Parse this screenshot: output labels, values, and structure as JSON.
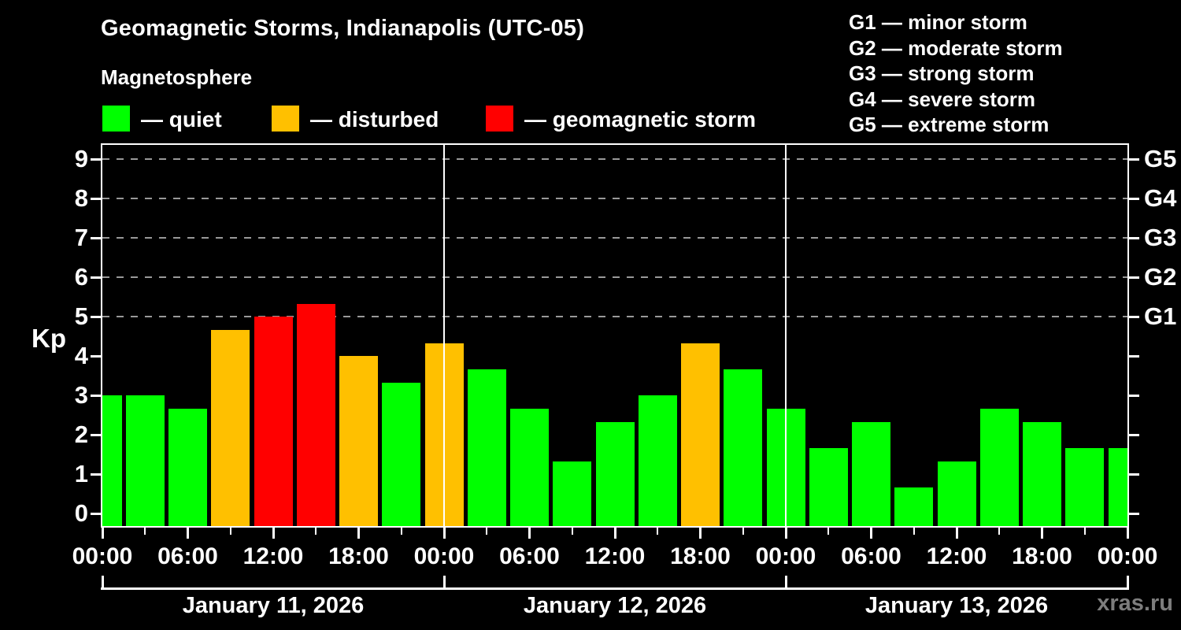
{
  "header": {
    "title": "Geomagnetic Storms, Indianapolis (UTC-05)",
    "subtitle": "Magnetosphere"
  },
  "legend": {
    "items": [
      {
        "state": "quiet",
        "label": "— quiet"
      },
      {
        "state": "disturbed",
        "label": "— disturbed"
      },
      {
        "state": "storm",
        "label": "— geomagnetic storm"
      }
    ]
  },
  "g_legend": {
    "items": [
      "G1 — minor storm",
      "G2 — moderate storm",
      "G3 — strong storm",
      "G4 — severe storm",
      "G5 — extreme storm"
    ]
  },
  "watermark": "xras.ru",
  "chart_data": {
    "type": "bar",
    "title": "Geomagnetic Storms, Indianapolis (UTC-05)",
    "subtitle": "Magnetosphere",
    "ylabel": "Kp",
    "ylim": [
      0,
      9
    ],
    "y_ticks": [
      "0",
      "1",
      "2",
      "3",
      "4",
      "5",
      "6",
      "7",
      "8",
      "9"
    ],
    "grid_kp_levels": [
      5,
      6,
      7,
      8,
      9
    ],
    "right_axis_ticks": [
      {
        "kp": 5,
        "label": "G1"
      },
      {
        "kp": 6,
        "label": "G2"
      },
      {
        "kp": 7,
        "label": "G3"
      },
      {
        "kp": 8,
        "label": "G4"
      },
      {
        "kp": 9,
        "label": "G5"
      }
    ],
    "x_hours_total": 72,
    "bar_interval_hours": 3,
    "x_major_ticks": [
      {
        "hour": 0,
        "label": "00:00"
      },
      {
        "hour": 6,
        "label": "06:00"
      },
      {
        "hour": 12,
        "label": "12:00"
      },
      {
        "hour": 18,
        "label": "18:00"
      },
      {
        "hour": 24,
        "label": "00:00"
      },
      {
        "hour": 30,
        "label": "06:00"
      },
      {
        "hour": 36,
        "label": "12:00"
      },
      {
        "hour": 42,
        "label": "18:00"
      },
      {
        "hour": 48,
        "label": "00:00"
      },
      {
        "hour": 54,
        "label": "06:00"
      },
      {
        "hour": 60,
        "label": "12:00"
      },
      {
        "hour": 66,
        "label": "18:00"
      },
      {
        "hour": 72,
        "label": "00:00"
      }
    ],
    "x_minor_tick_hours": [
      3,
      9,
      15,
      21,
      27,
      33,
      39,
      45,
      51,
      57,
      63,
      69
    ],
    "day_boundaries_hours": [
      24,
      48
    ],
    "days": [
      {
        "label": "January 11, 2026",
        "start_hour": 0,
        "end_hour": 24
      },
      {
        "label": "January 12, 2026",
        "start_hour": 24,
        "end_hour": 48
      },
      {
        "label": "January 13, 2026",
        "start_hour": 48,
        "end_hour": 72
      }
    ],
    "bars": [
      {
        "hour": 0,
        "kp": 3.0,
        "state": "quiet"
      },
      {
        "hour": 3,
        "kp": 3.0,
        "state": "quiet"
      },
      {
        "hour": 6,
        "kp": 2.67,
        "state": "quiet"
      },
      {
        "hour": 9,
        "kp": 4.67,
        "state": "disturbed"
      },
      {
        "hour": 12,
        "kp": 5.0,
        "state": "storm"
      },
      {
        "hour": 15,
        "kp": 5.33,
        "state": "storm"
      },
      {
        "hour": 18,
        "kp": 4.0,
        "state": "disturbed"
      },
      {
        "hour": 21,
        "kp": 3.33,
        "state": "quiet"
      },
      {
        "hour": 24,
        "kp": 4.33,
        "state": "disturbed"
      },
      {
        "hour": 27,
        "kp": 3.67,
        "state": "quiet"
      },
      {
        "hour": 30,
        "kp": 2.67,
        "state": "quiet"
      },
      {
        "hour": 33,
        "kp": 1.33,
        "state": "quiet"
      },
      {
        "hour": 36,
        "kp": 2.33,
        "state": "quiet"
      },
      {
        "hour": 39,
        "kp": 3.0,
        "state": "quiet"
      },
      {
        "hour": 42,
        "kp": 4.33,
        "state": "disturbed"
      },
      {
        "hour": 45,
        "kp": 3.67,
        "state": "quiet"
      },
      {
        "hour": 48,
        "kp": 2.67,
        "state": "quiet"
      },
      {
        "hour": 51,
        "kp": 1.67,
        "state": "quiet"
      },
      {
        "hour": 54,
        "kp": 2.33,
        "state": "quiet"
      },
      {
        "hour": 57,
        "kp": 0.67,
        "state": "quiet"
      },
      {
        "hour": 60,
        "kp": 1.33,
        "state": "quiet"
      },
      {
        "hour": 63,
        "kp": 2.67,
        "state": "quiet"
      },
      {
        "hour": 66,
        "kp": 2.33,
        "state": "quiet"
      },
      {
        "hour": 69,
        "kp": 1.67,
        "state": "quiet"
      },
      {
        "hour": 72,
        "kp": 1.67,
        "state": "quiet"
      }
    ],
    "colors": {
      "quiet": "#00ff00",
      "disturbed": "#ffc000",
      "storm": "#ff0000",
      "axis": "#ffffff",
      "grid": "#999999",
      "background": "#000000",
      "watermark": "#7d7d7d"
    },
    "legend_position": "top-left",
    "grid": "dashed horizontal at G-storm levels only"
  }
}
